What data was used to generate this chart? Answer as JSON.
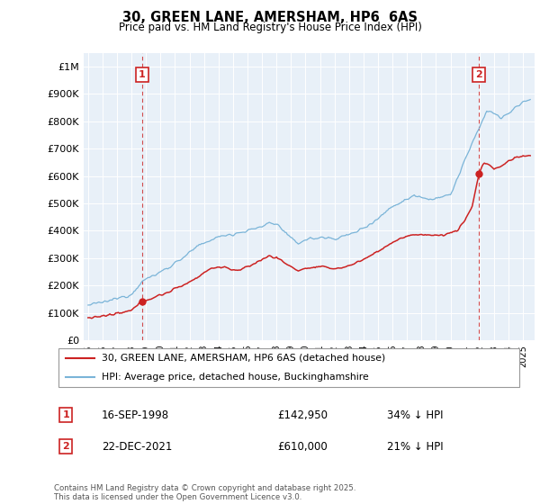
{
  "title": "30, GREEN LANE, AMERSHAM, HP6  6AS",
  "subtitle": "Price paid vs. HM Land Registry's House Price Index (HPI)",
  "yticks": [
    0,
    100000,
    200000,
    300000,
    400000,
    500000,
    600000,
    700000,
    800000,
    900000,
    1000000
  ],
  "ytick_labels": [
    "£0",
    "£100K",
    "£200K",
    "£300K",
    "£400K",
    "£500K",
    "£600K",
    "£700K",
    "£800K",
    "£900K",
    "£1M"
  ],
  "ylim": [
    0,
    1050000
  ],
  "xlim_left": 1994.7,
  "xlim_right": 2025.8,
  "hpi_color": "#7ab4d8",
  "price_color": "#cc2222",
  "marker1_date": 1998.71,
  "marker1_price": 142950,
  "marker2_date": 2021.97,
  "marker2_price": 610000,
  "legend1": "30, GREEN LANE, AMERSHAM, HP6 6AS (detached house)",
  "legend2": "HPI: Average price, detached house, Buckinghamshire",
  "note1_num": "1",
  "note1_date": "16-SEP-1998",
  "note1_price": "£142,950",
  "note1_pct": "34% ↓ HPI",
  "note2_num": "2",
  "note2_date": "22-DEC-2021",
  "note2_price": "£610,000",
  "note2_pct": "21% ↓ HPI",
  "footer": "Contains HM Land Registry data © Crown copyright and database right 2025.\nThis data is licensed under the Open Government Licence v3.0.",
  "chart_bg": "#e8f0f8",
  "fig_bg": "#ffffff"
}
